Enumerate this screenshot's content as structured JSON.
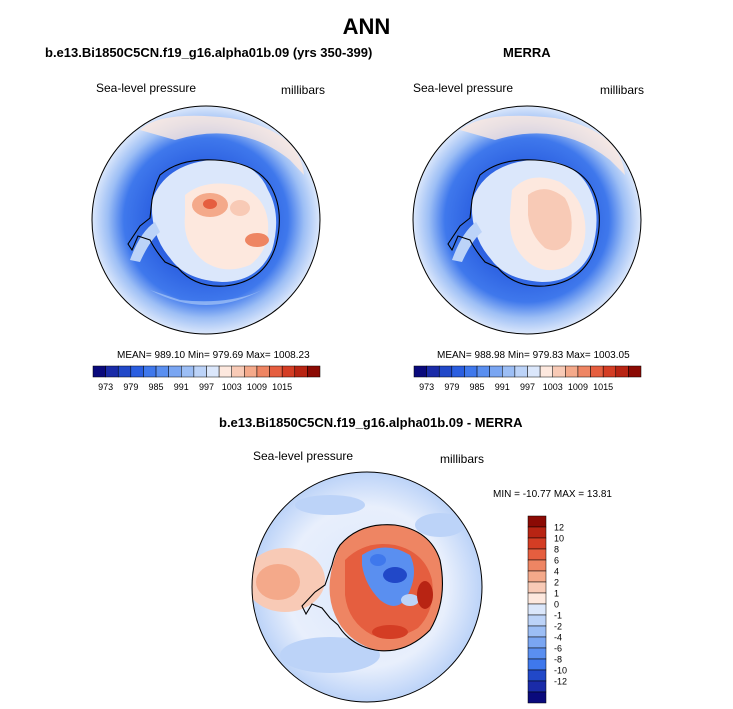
{
  "main_title": "ANN",
  "panels": [
    {
      "title": "b.e13.Bi1850C5CN.f19_g16.alpha01b.09 (yrs 350-399)",
      "variable": "Sea-level pressure",
      "units": "millibars",
      "stats": "MEAN= 989.10  Min= 979.69  Max= 1008.23",
      "colorbar_labels": [
        "973",
        "979",
        "985",
        "991",
        "997",
        "1003",
        "1009",
        "1015"
      ],
      "colorbar_colors": [
        "#0a0a7c",
        "#1a2ba8",
        "#2148c8",
        "#2a5ee0",
        "#3f78ec",
        "#5a8ff0",
        "#7aa6f2",
        "#9cbef5",
        "#bcd3f8",
        "#dbe7fb",
        "#fde8de",
        "#f8cab6",
        "#f4a98a",
        "#ee8563",
        "#e55e3f",
        "#d43d24",
        "#b82413",
        "#8b0a04"
      ]
    },
    {
      "title": "MERRA",
      "variable": "Sea-level pressure",
      "units": "millibars",
      "stats": "MEAN= 988.98  Min= 979.83  Max= 1003.05",
      "colorbar_labels": [
        "973",
        "979",
        "985",
        "991",
        "997",
        "1003",
        "1009",
        "1015"
      ]
    },
    {
      "title": "b.e13.Bi1850C5CN.f19_g16.alpha01b.09 - MERRA",
      "variable": "Sea-level pressure",
      "units": "millibars",
      "stats": "MIN = -10.77  MAX =  13.81",
      "colorbar_labels": [
        "12",
        "10",
        "8",
        "6",
        "4",
        "2",
        "1",
        "0",
        "-1",
        "-2",
        "-4",
        "-6",
        "-8",
        "-10",
        "-12"
      ],
      "colorbar_colors": [
        "#8b0a04",
        "#b82413",
        "#d43d24",
        "#e55e3f",
        "#ee8563",
        "#f4a98a",
        "#f8cab6",
        "#fde8de",
        "#dbe7fb",
        "#bcd3f8",
        "#9cbef5",
        "#7aa6f2",
        "#5a8ff0",
        "#3f78ec",
        "#2148c8",
        "#1a2ba8",
        "#0a0a7c"
      ]
    }
  ]
}
